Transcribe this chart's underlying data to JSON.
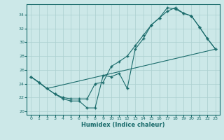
{
  "xlabel": "Humidex (Indice chaleur)",
  "bg_color": "#cce8e8",
  "grid_color": "#aacfcf",
  "line_color": "#1a6b6b",
  "xlim": [
    -0.5,
    23.5
  ],
  "ylim": [
    19.5,
    35.5
  ],
  "xticks": [
    0,
    1,
    2,
    3,
    4,
    5,
    6,
    7,
    8,
    9,
    10,
    11,
    12,
    13,
    14,
    15,
    16,
    17,
    18,
    19,
    20,
    21,
    22,
    23
  ],
  "yticks": [
    20,
    22,
    24,
    26,
    28,
    30,
    32,
    34
  ],
  "line1_x": [
    0,
    1,
    2,
    3,
    4,
    5,
    6,
    7,
    8,
    9,
    10,
    11,
    12,
    13,
    14,
    15,
    16,
    17,
    18,
    19,
    20,
    21,
    22,
    23
  ],
  "line1_y": [
    25.0,
    24.2,
    23.3,
    22.5,
    21.8,
    21.5,
    21.5,
    20.5,
    20.5,
    25.2,
    25.0,
    25.5,
    23.3,
    29.0,
    30.5,
    32.5,
    33.5,
    35.0,
    34.8,
    34.2,
    33.8,
    32.2,
    30.5,
    29.0
  ],
  "line2_x": [
    0,
    1,
    2,
    3,
    4,
    5,
    6,
    7,
    8,
    9,
    10,
    11,
    12,
    13,
    14,
    15,
    16,
    17,
    18,
    19,
    20,
    21,
    22,
    23
  ],
  "line2_y": [
    25.0,
    24.2,
    23.3,
    22.5,
    22.0,
    21.8,
    21.8,
    21.8,
    24.0,
    24.2,
    26.5,
    27.2,
    28.0,
    29.5,
    31.0,
    32.5,
    33.5,
    34.5,
    35.0,
    34.2,
    33.8,
    32.2,
    30.5,
    29.0
  ],
  "line3_x": [
    0,
    2,
    23
  ],
  "line3_y": [
    25.0,
    23.3,
    29.0
  ]
}
